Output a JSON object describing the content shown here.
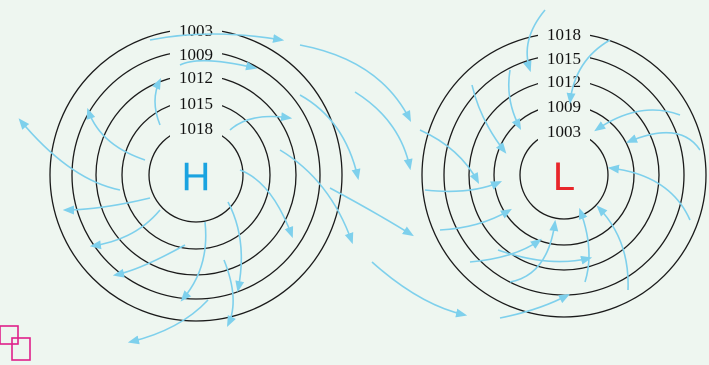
{
  "diagram": {
    "high": {
      "letter": "H",
      "color": "#1aa3e0",
      "isobars": [
        "1003",
        "1009",
        "1012",
        "1015",
        "1018"
      ]
    },
    "low": {
      "letter": "L",
      "color": "#e8262a",
      "isobars": [
        "1018",
        "1015",
        "1012",
        "1009",
        "1003"
      ]
    },
    "ring_color": "#1a1a1a",
    "arrow_color": "#7ed0ec",
    "corner_mark_color": "#e0208a"
  }
}
